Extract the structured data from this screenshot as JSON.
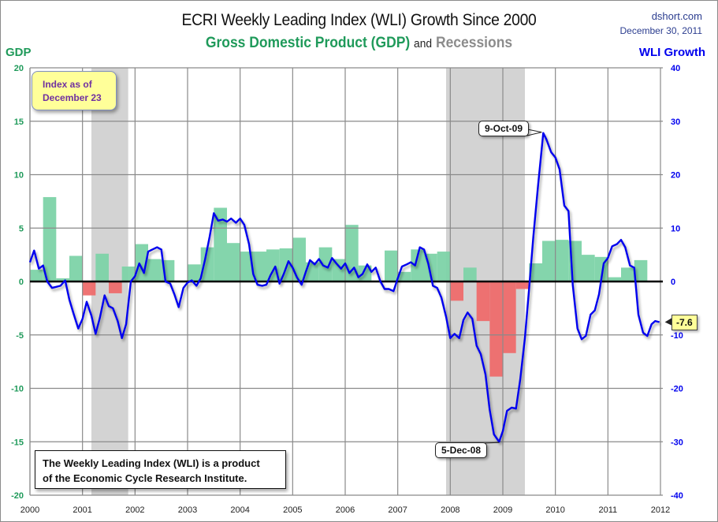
{
  "header": {
    "title": "ECRI Weekly Leading Index (WLI) Growth Since 2000",
    "subtitle_gdp": "Gross Domestic Product (GDP)",
    "subtitle_and": "and",
    "subtitle_recessions": "Recessions",
    "source_site": "dshort.com",
    "source_date": "December 30, 2011"
  },
  "annotations": {
    "index_as_of_line1": "Index as of",
    "index_as_of_line2": "December 23",
    "credit_line1": "The Weekly Leading Index (WLI) is a product",
    "credit_line2": "of the Economic Cycle Research Institute.",
    "peak_label": "9-Oct-09",
    "trough_label": "5-Dec-08",
    "last_value_label": "-7.6"
  },
  "colors": {
    "gdp_positive": "#7dd3a8",
    "gdp_negative": "#ee6b6b",
    "recession": "#d3d3d3",
    "wli_line": "#0000ee",
    "gdp_axis": "#1f9a5a",
    "wli_axis": "#0000ee"
  },
  "chart_data": {
    "type": "bar+line",
    "title": "ECRI Weekly Leading Index (WLI) Growth Since 2000",
    "subtitle": "Gross Domestic Product (GDP) and Recessions",
    "x_tick_labels": [
      "2000",
      "2001",
      "2002",
      "2003",
      "2004",
      "2005",
      "2006",
      "2007",
      "2008",
      "2009",
      "2010",
      "2011",
      "2012"
    ],
    "xlim": [
      2000.0,
      2012.3
    ],
    "left_axis": {
      "label": "GDP",
      "ylim": [
        -20,
        20
      ],
      "ticks": [
        20,
        15,
        10,
        5,
        0,
        -5,
        -10,
        -15,
        -20
      ]
    },
    "right_axis": {
      "label": "WLI Growth",
      "ylim": [
        -40,
        40
      ],
      "ticks": [
        40,
        30,
        20,
        10,
        0,
        -10,
        -20,
        -30,
        -40
      ]
    },
    "grid": true,
    "recessions": [
      {
        "start": 2001.17,
        "end": 2001.87
      },
      {
        "start": 2007.92,
        "end": 2009.42
      }
    ],
    "gdp_quarterly": {
      "name": "GDP (quarterly, annualized %)",
      "start": 2000.0,
      "step": 0.25,
      "values": [
        1.1,
        7.9,
        0.3,
        2.4,
        -1.3,
        2.6,
        -1.1,
        1.4,
        3.5,
        2.1,
        2.0,
        0.1,
        1.6,
        3.2,
        6.9,
        3.6,
        2.8,
        2.8,
        3.0,
        3.1,
        4.1,
        1.8,
        3.2,
        2.1,
        5.3,
        1.5,
        0.1,
        2.9,
        0.9,
        3.0,
        2.6,
        2.8,
        -1.8,
        1.3,
        -3.7,
        -8.9,
        -6.7,
        -0.7,
        1.7,
        3.8,
        3.9,
        3.8,
        2.5,
        2.3,
        0.4,
        1.3,
        2.0
      ],
      "note": "bars from 2000 Q1 through 2011 Q3; values estimated from chart"
    },
    "wli_growth": {
      "name": "WLI Growth (right axis, %)",
      "points": [
        [
          2000.0,
          3.6
        ],
        [
          2000.08,
          5.8
        ],
        [
          2000.17,
          2.4
        ],
        [
          2000.25,
          3.0
        ],
        [
          2000.33,
          0.0
        ],
        [
          2000.42,
          -1.2
        ],
        [
          2000.5,
          -1.0
        ],
        [
          2000.58,
          -0.8
        ],
        [
          2000.67,
          0.2
        ],
        [
          2000.75,
          -3.4
        ],
        [
          2000.83,
          -6.0
        ],
        [
          2000.92,
          -8.8
        ],
        [
          2001.0,
          -7.0
        ],
        [
          2001.08,
          -3.8
        ],
        [
          2001.17,
          -6.4
        ],
        [
          2001.25,
          -9.8
        ],
        [
          2001.33,
          -6.8
        ],
        [
          2001.42,
          -2.6
        ],
        [
          2001.5,
          -4.6
        ],
        [
          2001.58,
          -5.0
        ],
        [
          2001.67,
          -7.4
        ],
        [
          2001.75,
          -10.6
        ],
        [
          2001.83,
          -8.0
        ],
        [
          2001.92,
          0.0
        ],
        [
          2002.0,
          1.0
        ],
        [
          2002.08,
          3.4
        ],
        [
          2002.17,
          1.6
        ],
        [
          2002.25,
          5.6
        ],
        [
          2002.33,
          6.0
        ],
        [
          2002.42,
          6.4
        ],
        [
          2002.5,
          6.0
        ],
        [
          2002.58,
          0.0
        ],
        [
          2002.67,
          -0.4
        ],
        [
          2002.75,
          -2.4
        ],
        [
          2002.83,
          -4.8
        ],
        [
          2002.92,
          -1.2
        ],
        [
          2003.0,
          -0.2
        ],
        [
          2003.08,
          0.2
        ],
        [
          2003.17,
          -0.8
        ],
        [
          2003.25,
          0.6
        ],
        [
          2003.33,
          4.0
        ],
        [
          2003.42,
          8.4
        ],
        [
          2003.5,
          12.8
        ],
        [
          2003.58,
          11.4
        ],
        [
          2003.67,
          11.6
        ],
        [
          2003.75,
          11.2
        ],
        [
          2003.83,
          11.8
        ],
        [
          2003.92,
          11.0
        ],
        [
          2004.0,
          11.8
        ],
        [
          2004.08,
          10.6
        ],
        [
          2004.17,
          7.0
        ],
        [
          2004.25,
          1.4
        ],
        [
          2004.33,
          -0.6
        ],
        [
          2004.42,
          -0.8
        ],
        [
          2004.5,
          -0.6
        ],
        [
          2004.58,
          1.2
        ],
        [
          2004.67,
          2.8
        ],
        [
          2004.75,
          -0.4
        ],
        [
          2004.83,
          1.4
        ],
        [
          2004.92,
          3.8
        ],
        [
          2005.0,
          2.6
        ],
        [
          2005.08,
          0.8
        ],
        [
          2005.17,
          -0.6
        ],
        [
          2005.25,
          1.8
        ],
        [
          2005.33,
          4.0
        ],
        [
          2005.42,
          3.2
        ],
        [
          2005.5,
          4.2
        ],
        [
          2005.58,
          3.0
        ],
        [
          2005.67,
          2.6
        ],
        [
          2005.75,
          4.4
        ],
        [
          2005.83,
          3.4
        ],
        [
          2005.92,
          2.4
        ],
        [
          2006.0,
          3.4
        ],
        [
          2006.08,
          1.6
        ],
        [
          2006.17,
          2.6
        ],
        [
          2006.25,
          0.8
        ],
        [
          2006.33,
          1.4
        ],
        [
          2006.42,
          3.2
        ],
        [
          2006.5,
          1.8
        ],
        [
          2006.58,
          2.6
        ],
        [
          2006.67,
          0.0
        ],
        [
          2006.75,
          -1.4
        ],
        [
          2006.83,
          -1.4
        ],
        [
          2006.92,
          -1.8
        ],
        [
          2007.0,
          0.6
        ],
        [
          2007.08,
          2.8
        ],
        [
          2007.17,
          3.2
        ],
        [
          2007.25,
          3.6
        ],
        [
          2007.33,
          3.0
        ],
        [
          2007.42,
          6.4
        ],
        [
          2007.5,
          6.0
        ],
        [
          2007.58,
          3.4
        ],
        [
          2007.67,
          -0.8
        ],
        [
          2007.75,
          -1.2
        ],
        [
          2007.83,
          -3.0
        ],
        [
          2007.92,
          -6.6
        ],
        [
          2008.0,
          -10.6
        ],
        [
          2008.08,
          -9.8
        ],
        [
          2008.17,
          -10.6
        ],
        [
          2008.25,
          -7.2
        ],
        [
          2008.33,
          -5.8
        ],
        [
          2008.42,
          -7.0
        ],
        [
          2008.5,
          -12.0
        ],
        [
          2008.58,
          -13.6
        ],
        [
          2008.67,
          -17.4
        ],
        [
          2008.75,
          -24.0
        ],
        [
          2008.83,
          -28.6
        ],
        [
          2008.93,
          -30.0
        ],
        [
          2009.0,
          -28.0
        ],
        [
          2009.08,
          -24.2
        ],
        [
          2009.17,
          -23.6
        ],
        [
          2009.25,
          -23.8
        ],
        [
          2009.33,
          -18.4
        ],
        [
          2009.42,
          -10.6
        ],
        [
          2009.5,
          -1.4
        ],
        [
          2009.58,
          8.4
        ],
        [
          2009.67,
          18.0
        ],
        [
          2009.77,
          27.8
        ],
        [
          2009.83,
          26.6
        ],
        [
          2009.92,
          24.2
        ],
        [
          2010.0,
          23.2
        ],
        [
          2010.08,
          21.0
        ],
        [
          2010.17,
          14.2
        ],
        [
          2010.25,
          13.2
        ],
        [
          2010.33,
          -0.6
        ],
        [
          2010.42,
          -8.8
        ],
        [
          2010.5,
          -10.8
        ],
        [
          2010.58,
          -10.2
        ],
        [
          2010.67,
          -6.2
        ],
        [
          2010.75,
          -5.4
        ],
        [
          2010.83,
          -2.4
        ],
        [
          2010.92,
          3.4
        ],
        [
          2011.0,
          4.4
        ],
        [
          2011.08,
          6.6
        ],
        [
          2011.17,
          7.0
        ],
        [
          2011.25,
          7.8
        ],
        [
          2011.33,
          6.4
        ],
        [
          2011.42,
          3.0
        ],
        [
          2011.5,
          2.6
        ],
        [
          2011.58,
          -6.2
        ],
        [
          2011.67,
          -9.6
        ],
        [
          2011.75,
          -10.2
        ],
        [
          2011.83,
          -8.0
        ],
        [
          2011.9,
          -7.4
        ],
        [
          2011.98,
          -7.6
        ]
      ],
      "note": "weekly series approximated from chart"
    },
    "callouts": [
      {
        "label": "9-Oct-09",
        "x": 2009.77,
        "value": 27.8
      },
      {
        "label": "5-Dec-08",
        "x": 2008.93,
        "value": -30.0
      },
      {
        "label": "-7.6",
        "x": 2011.98,
        "value": -7.6
      }
    ]
  }
}
